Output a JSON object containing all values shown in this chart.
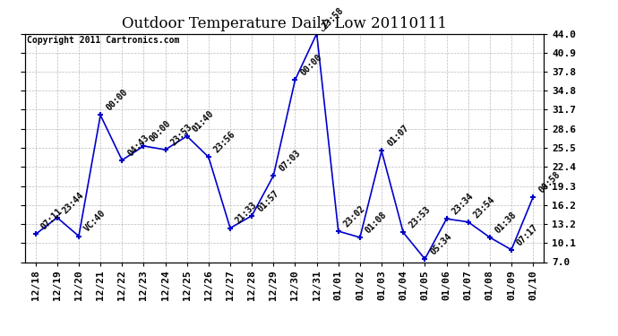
{
  "title": "Outdoor Temperature Daily Low 20110111",
  "copyright": "Copyright 2011 Cartronics.com",
  "x_labels": [
    "12/18",
    "12/19",
    "12/20",
    "12/21",
    "12/22",
    "12/23",
    "12/24",
    "12/25",
    "12/26",
    "12/27",
    "12/28",
    "12/29",
    "12/30",
    "12/31",
    "01/01",
    "01/02",
    "01/03",
    "01/04",
    "01/05",
    "01/06",
    "01/07",
    "01/08",
    "01/09",
    "01/10"
  ],
  "y_values": [
    11.5,
    14.2,
    11.2,
    30.8,
    23.5,
    25.8,
    25.2,
    27.4,
    24.0,
    12.5,
    14.5,
    21.0,
    36.5,
    44.0,
    12.0,
    11.0,
    25.0,
    11.8,
    7.5,
    14.0,
    13.5,
    11.0,
    9.0,
    17.5
  ],
  "time_labels": [
    "07:11",
    "23:44",
    "VC:40",
    "00:00",
    "04:43",
    "00:00",
    "23:53",
    "01:40",
    "23:56",
    "21:33",
    "01:57",
    "07:03",
    "00:00",
    "23:58",
    "23:02",
    "01:08",
    "01:07",
    "23:53",
    "05:34",
    "23:34",
    "23:54",
    "01:38",
    "07:17",
    "00:58"
  ],
  "y_ticks": [
    7.0,
    10.1,
    13.2,
    16.2,
    19.3,
    22.4,
    25.5,
    28.6,
    31.7,
    34.8,
    37.8,
    40.9,
    44.0
  ],
  "line_color": "#0000cc",
  "marker_color": "#0000cc",
  "bg_color": "#ffffff",
  "grid_color": "#aaaaaa",
  "title_fontsize": 12,
  "label_fontsize": 7,
  "tick_fontsize": 8,
  "copyright_fontsize": 7
}
